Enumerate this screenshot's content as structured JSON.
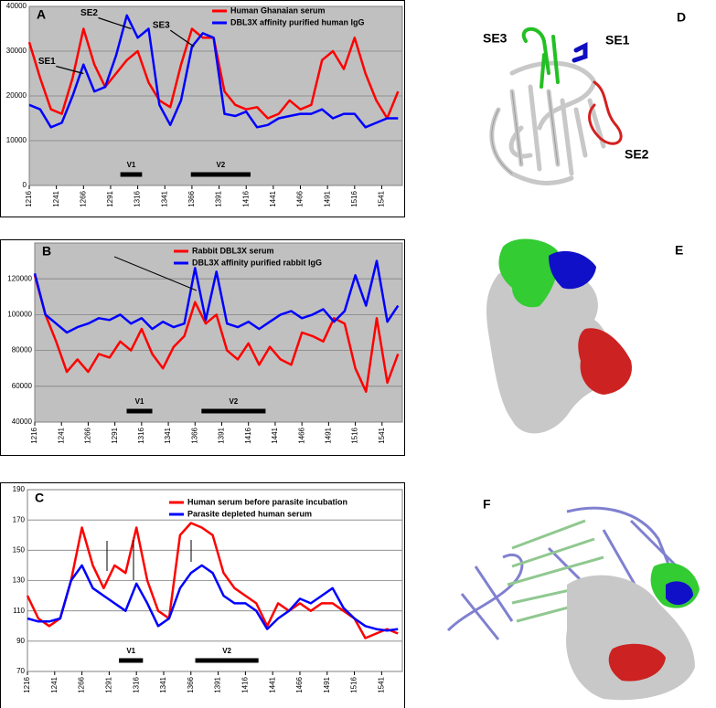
{
  "chart_data": [
    {
      "type": "line",
      "panel": "A",
      "x": [
        1216,
        1226,
        1236,
        1246,
        1256,
        1266,
        1276,
        1286,
        1296,
        1306,
        1316,
        1326,
        1336,
        1346,
        1356,
        1366,
        1376,
        1386,
        1396,
        1406,
        1416,
        1426,
        1436,
        1446,
        1456,
        1466,
        1476,
        1486,
        1496,
        1506,
        1516,
        1526,
        1536,
        1546,
        1556
      ],
      "series": [
        {
          "name": "Human Ghanaian serum",
          "color": "#ff0000",
          "values": [
            32000,
            24000,
            17000,
            16000,
            24000,
            35000,
            27000,
            22000,
            25000,
            28000,
            30000,
            23000,
            19000,
            17500,
            27000,
            35000,
            33000,
            33000,
            21000,
            18000,
            17000,
            17500,
            15000,
            16000,
            19000,
            17000,
            18000,
            28000,
            30000,
            26000,
            33000,
            25000,
            19000,
            15000,
            21000
          ]
        },
        {
          "name": "DBL3X affinity purified human IgG",
          "color": "#0000ff",
          "values": [
            18000,
            17000,
            13000,
            14000,
            20000,
            27000,
            21000,
            22000,
            29000,
            38000,
            33000,
            35000,
            18000,
            13500,
            19000,
            31000,
            34000,
            33000,
            16000,
            15500,
            16500,
            13000,
            13500,
            15000,
            15500,
            16000,
            16000,
            17000,
            15000,
            16000,
            16000,
            13000,
            14000,
            15000,
            15000
          ]
        }
      ],
      "xlim": [
        1216,
        1560
      ],
      "xticks": [
        1216,
        1241,
        1266,
        1291,
        1316,
        1341,
        1366,
        1391,
        1416,
        1441,
        1466,
        1491,
        1516,
        1541
      ],
      "ylim": [
        0,
        40000
      ],
      "yticks": [
        0,
        10000,
        20000,
        30000,
        40000
      ],
      "grid": true,
      "plot_background": "#c0c0c0",
      "annotations": [
        {
          "label": "SE1",
          "x": 1266,
          "y": 25000
        },
        {
          "label": "SE2",
          "x": 1310,
          "y": 35000
        },
        {
          "label": "SE3",
          "x": 1368,
          "y": 31000
        }
      ],
      "regions": [
        {
          "label": "V1",
          "start": 1300,
          "end": 1320
        },
        {
          "label": "V2",
          "start": 1365,
          "end": 1420
        }
      ]
    },
    {
      "type": "line",
      "panel": "B",
      "x": [
        1216,
        1226,
        1236,
        1246,
        1256,
        1266,
        1276,
        1286,
        1296,
        1306,
        1316,
        1326,
        1336,
        1346,
        1356,
        1366,
        1376,
        1386,
        1396,
        1406,
        1416,
        1426,
        1436,
        1446,
        1456,
        1466,
        1476,
        1486,
        1496,
        1506,
        1516,
        1526,
        1536,
        1546,
        1556
      ],
      "series": [
        {
          "name": "Rabbit DBL3X serum",
          "color": "#ff0000",
          "values": [
            122000,
            100000,
            85000,
            68000,
            75000,
            68000,
            78000,
            76000,
            85000,
            80000,
            92000,
            78000,
            70000,
            82000,
            88000,
            107000,
            95000,
            100000,
            80000,
            75000,
            84000,
            72000,
            82000,
            75000,
            72000,
            90000,
            88000,
            85000,
            98000,
            95000,
            70000,
            57000,
            98000,
            62000,
            78000
          ]
        },
        {
          "name": "DBL3X affinity purified rabbit IgG",
          "color": "#0000ff",
          "values": [
            123000,
            100000,
            95000,
            90000,
            93000,
            95000,
            98000,
            97000,
            100000,
            95000,
            98000,
            92000,
            96000,
            93000,
            95000,
            126000,
            97000,
            124000,
            95000,
            93000,
            96000,
            92000,
            96000,
            100000,
            102000,
            98000,
            100000,
            103000,
            96000,
            102000,
            122000,
            105000,
            130000,
            96000,
            105000
          ]
        }
      ],
      "xlim": [
        1216,
        1560
      ],
      "xticks": [
        1216,
        1241,
        1266,
        1291,
        1316,
        1341,
        1366,
        1391,
        1416,
        1441,
        1466,
        1491,
        1516,
        1541
      ],
      "ylim": [
        40000,
        140000
      ],
      "yticks": [
        40000,
        60000,
        80000,
        100000,
        120000
      ],
      "grid": true,
      "plot_background": "#c0c0c0",
      "regions": [
        {
          "label": "V1",
          "start": 1302,
          "end": 1326
        },
        {
          "label": "V2",
          "start": 1372,
          "end": 1432
        }
      ]
    },
    {
      "type": "line",
      "panel": "C",
      "x": [
        1216,
        1226,
        1236,
        1246,
        1256,
        1266,
        1276,
        1286,
        1296,
        1306,
        1316,
        1326,
        1336,
        1346,
        1356,
        1366,
        1376,
        1386,
        1396,
        1406,
        1416,
        1426,
        1436,
        1446,
        1456,
        1466,
        1476,
        1486,
        1496,
        1506,
        1516,
        1526,
        1536,
        1546,
        1556
      ],
      "series": [
        {
          "name": "Human serum before parasite incubation",
          "color": "#ff0000",
          "values": [
            120,
            105,
            100,
            105,
            130,
            165,
            140,
            125,
            140,
            135,
            165,
            130,
            110,
            105,
            160,
            168,
            165,
            160,
            135,
            125,
            120,
            115,
            100,
            115,
            110,
            115,
            110,
            115,
            115,
            110,
            105,
            92,
            95,
            98,
            95
          ]
        },
        {
          "name": "Parasite depleted human serum",
          "color": "#0000ff",
          "values": [
            105,
            103,
            103,
            105,
            130,
            140,
            125,
            120,
            115,
            110,
            128,
            115,
            100,
            105,
            125,
            135,
            140,
            135,
            120,
            115,
            115,
            110,
            98,
            105,
            110,
            118,
            115,
            120,
            125,
            112,
            105,
            100,
            98,
            97,
            98
          ]
        }
      ],
      "xlim": [
        1216,
        1560
      ],
      "xticks": [
        1216,
        1241,
        1266,
        1291,
        1316,
        1341,
        1366,
        1391,
        1416,
        1441,
        1466,
        1491,
        1516,
        1541
      ],
      "ylim": [
        70,
        190
      ],
      "yticks": [
        70,
        90,
        110,
        130,
        150,
        170,
        190
      ],
      "grid": true,
      "plot_background": "#ffffff",
      "regions": [
        {
          "label": "V1",
          "start": 1300,
          "end": 1322
        },
        {
          "label": "V2",
          "start": 1370,
          "end": 1428
        }
      ]
    }
  ],
  "structure_panels": [
    {
      "label": "D",
      "annotations": [
        "SE3",
        "SE1",
        "SE2"
      ]
    },
    {
      "label": "E"
    },
    {
      "label": "F"
    }
  ]
}
